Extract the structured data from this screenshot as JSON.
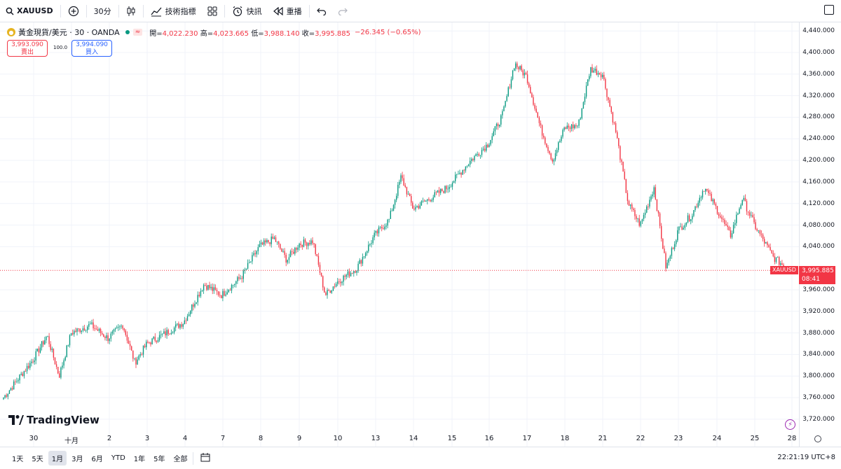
{
  "toolbar": {
    "symbol": "XAUUSD",
    "interval": "30分",
    "indicators_label": "技術指標",
    "alert_label": "快訊",
    "replay_label": "重播"
  },
  "legend": {
    "title": "黃金現貨/美元 · 30 · OANDA",
    "flag": "≈",
    "open_label": "開=",
    "open": "4,022.230",
    "high_label": "高=",
    "high": "4,023.665",
    "low_label": "低=",
    "low": "3,988.140",
    "close_label": "收=",
    "close": "3,995.885",
    "change": "−26.345 (−0.65%)"
  },
  "trade": {
    "sell_price": "3,993.090",
    "sell_label": "賣出",
    "spread": "100.0",
    "buy_price": "3,994.090",
    "buy_label": "買入"
  },
  "yaxis": {
    "ticks": [
      4440,
      4400,
      4360,
      4320,
      4280,
      4240,
      4200,
      4160,
      4120,
      4080,
      4040,
      3960,
      3920,
      3880,
      3840,
      3800,
      3760,
      3720
    ],
    "labels": [
      "4,440.000",
      "4,400.000",
      "4,360.000",
      "4,320.000",
      "4,280.000",
      "4,240.000",
      "4,200.000",
      "4,160.000",
      "4,120.000",
      "4,080.000",
      "4,040.000",
      "3,960.000",
      "3,920.000",
      "3,880.000",
      "3,840.000",
      "3,800.000",
      "3,760.000",
      "3,720.000"
    ]
  },
  "xaxis": {
    "labels": [
      "30",
      "十月",
      "2",
      "3",
      "4",
      "7",
      "8",
      "9",
      "10",
      "13",
      "14",
      "15",
      "16",
      "17",
      "18",
      "21",
      "22",
      "23",
      "24",
      "25",
      "28"
    ]
  },
  "price_tag": {
    "symbol": "XAUUSD",
    "price": "3,995.885",
    "countdown": "08:41",
    "value": 3995.885
  },
  "watermark": "TradingView",
  "ranges": [
    "1天",
    "5天",
    "1月",
    "3月",
    "6月",
    "YTD",
    "1年",
    "5年",
    "全部"
  ],
  "active_range": "1月",
  "clock": "22:21:19 UTC+8",
  "colors": {
    "up": "#089981",
    "down": "#f23645",
    "accent": "#2962ff"
  },
  "chart_data": {
    "type": "candlestick",
    "title": "黃金現貨/美元 · 30 · OANDA",
    "ylim": [
      3700,
      4450
    ],
    "x_labels": [
      "30",
      "十月",
      "2",
      "3",
      "4",
      "7",
      "8",
      "9",
      "10",
      "13",
      "14",
      "15",
      "16",
      "17",
      "18",
      "21",
      "22",
      "23",
      "24",
      "25",
      "28"
    ],
    "close_path": [
      [
        "30",
        3760
      ],
      [
        "30",
        3830
      ],
      [
        "十月",
        3875
      ],
      [
        "十月",
        3800
      ],
      [
        "十月",
        3880
      ],
      [
        "2",
        3895
      ],
      [
        "2",
        3870
      ],
      [
        "3",
        3895
      ],
      [
        "3",
        3825
      ],
      [
        "3",
        3860
      ],
      [
        "4",
        3880
      ],
      [
        "4",
        3900
      ],
      [
        "7",
        3970
      ],
      [
        "7",
        3950
      ],
      [
        "8",
        3985
      ],
      [
        "8",
        4040
      ],
      [
        "9",
        4055
      ],
      [
        "9",
        4015
      ],
      [
        "9",
        4045
      ],
      [
        "10",
        4050
      ],
      [
        "10",
        3950
      ],
      [
        "10",
        3975
      ],
      [
        "13",
        4000
      ],
      [
        "13",
        4060
      ],
      [
        "14",
        4090
      ],
      [
        "14",
        4170
      ],
      [
        "14",
        4110
      ],
      [
        "15",
        4150
      ],
      [
        "16",
        4200
      ],
      [
        "16",
        4230
      ],
      [
        "17",
        4285
      ],
      [
        "17",
        4380
      ],
      [
        "17",
        4355
      ],
      [
        "18",
        4260
      ],
      [
        "18",
        4200
      ],
      [
        "18",
        4260
      ],
      [
        "21",
        4265
      ],
      [
        "21",
        4370
      ],
      [
        "21",
        4360
      ],
      [
        "22",
        4250
      ],
      [
        "22",
        4120
      ],
      [
        "22",
        4080
      ],
      [
        "23",
        4150
      ],
      [
        "23",
        4000
      ],
      [
        "23",
        4070
      ],
      [
        "24",
        4100
      ],
      [
        "24",
        4150
      ],
      [
        "24",
        4110
      ],
      [
        "25",
        4060
      ],
      [
        "25",
        4130
      ],
      [
        "25",
        4080
      ],
      [
        "28",
        4020
      ],
      [
        "28",
        3996
      ]
    ]
  }
}
